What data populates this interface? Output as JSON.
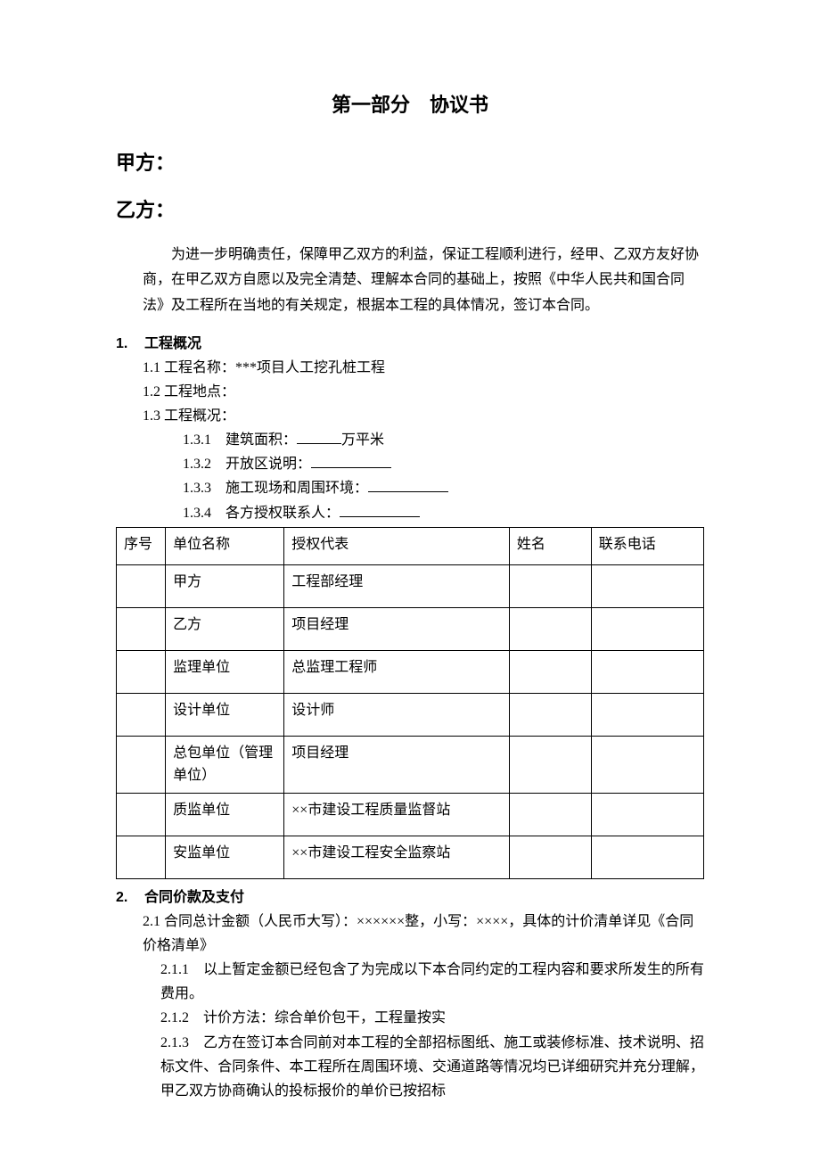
{
  "title": "第一部分　协议书",
  "partyA": "甲方：",
  "partyB": "乙方：",
  "preamble": "为进一步明确责任，保障甲乙双方的利益，保证工程顺利进行，经甲、乙双方友好协商，在甲乙双方自愿以及完全清楚、理解本合同的基础上，按照《中华人民共和国合同法》及工程所在当地的有关规定，根据本工程的具体情况，签订本合同。",
  "section1": {
    "num": "1.",
    "title": "工程概况",
    "item1_1": "1.1 工程名称：***项目人工挖孔桩工程",
    "item1_2": "1.2 工程地点：",
    "item1_3": "1.3 工程概况：",
    "item1_3_1_pre": "1.3.1　建筑面积：",
    "item1_3_1_post": "万平米",
    "item1_3_2": "1.3.2　开放区说明：",
    "item1_3_3": "1.3.3　施工现场和周围环境：",
    "item1_3_4": "1.3.4　各方授权联系人："
  },
  "table": {
    "headers": {
      "seq": "序号",
      "unit": "单位名称",
      "rep": "授权代表",
      "name": "姓名",
      "phone": "联系电话"
    },
    "rows": [
      {
        "unit": "甲方",
        "rep": "工程部经理"
      },
      {
        "unit": "乙方",
        "rep": "项目经理"
      },
      {
        "unit": "监理单位",
        "rep": "总监理工程师"
      },
      {
        "unit": "设计单位",
        "rep": "设计师"
      },
      {
        "unit": "总包单位（管理单位）",
        "rep": "项目经理"
      },
      {
        "unit": "质监单位",
        "rep": "××市建设工程质量监督站"
      },
      {
        "unit": "安监单位",
        "rep": "××市建设工程安全监察站"
      }
    ]
  },
  "section2": {
    "num": "2.",
    "title": "合同价款及支付",
    "item2_1": "2.1 合同总计金额（人民币大写）：××××××整，小写：××××，具体的计价清单详见《合同价格清单》",
    "item2_1_1": "2.1.1　以上暂定金额已经包含了为完成以下本合同约定的工程内容和要求所发生的所有费用。",
    "item2_1_2": "2.1.2　计价方法：综合单价包干，工程量按实",
    "item2_1_3": "2.1.3　乙方在签订本合同前对本工程的全部招标图纸、施工或装修标准、技术说明、招标文件、合同条件、本工程所在周围环境、交通道路等情况均已详细研究并充分理解，甲乙双方协商确认的投标报价的单价已按招标"
  }
}
